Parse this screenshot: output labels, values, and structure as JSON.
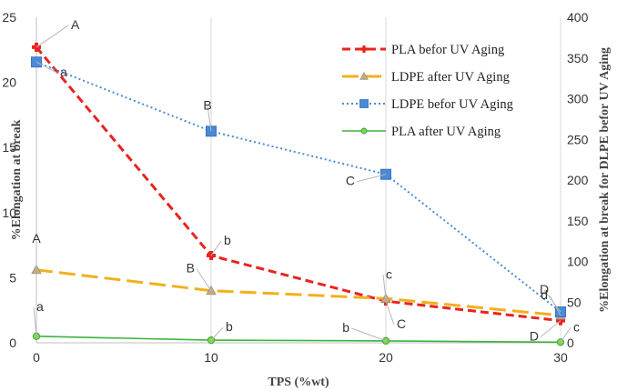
{
  "chart_data": {
    "type": "line",
    "x": [
      0,
      10,
      20,
      30
    ],
    "xlabel": "TPS (%wt)",
    "ylabel_left": "%Elongation at break",
    "ylabel_right": "%Elongation at break for DLPE befor UV Aging",
    "xlim": [
      0,
      30
    ],
    "ylim_left": [
      0,
      25
    ],
    "ylim_right": [
      0,
      400
    ],
    "x_ticks": [
      "0",
      "10",
      "20",
      "30"
    ],
    "y_left_ticks": [
      "0",
      "5",
      "10",
      "15",
      "20",
      "25"
    ],
    "y_right_ticks": [
      "0",
      "50",
      "100",
      "150",
      "200",
      "250",
      "300",
      "350",
      "400"
    ],
    "grid": "vertical",
    "legend_position": "top-right",
    "series": [
      {
        "name": "PLA befor UV Aging",
        "axis": "left",
        "color": "#e8231e",
        "dash": "dashed",
        "marker": "cross",
        "values": [
          22.7,
          6.7,
          3.2,
          1.7
        ]
      },
      {
        "name": "LDPE after UV Aging",
        "axis": "left",
        "color": "#f2b01e",
        "dash": "longdash",
        "marker": "triangle",
        "values": [
          5.6,
          4.0,
          3.4,
          2.1
        ]
      },
      {
        "name": "LDPE befor UV Aging",
        "axis": "right",
        "color": "#4a8ad6",
        "dash": "dotted",
        "marker": "square",
        "values": [
          345,
          260,
          207,
          38
        ]
      },
      {
        "name": "PLA after UV Aging",
        "axis": "left",
        "color": "#3cb43c",
        "dash": "solid",
        "marker": "circle",
        "values": [
          0.5,
          0.2,
          0.15,
          0.05
        ]
      }
    ],
    "annotations": [
      {
        "text": "A",
        "x": 0,
        "series": 0
      },
      {
        "text": "a",
        "x": 0,
        "series": 2
      },
      {
        "text": "B",
        "x": 10,
        "series": 2
      },
      {
        "text": "C",
        "x": 20,
        "series": 2
      },
      {
        "text": "D",
        "x": 30,
        "series": 2
      },
      {
        "text": "b",
        "x": 10,
        "series": 0
      },
      {
        "text": "A",
        "x": 0,
        "series": 1
      },
      {
        "text": "B",
        "x": 10,
        "series": 1
      },
      {
        "text": "c",
        "x": 20,
        "series": 1
      },
      {
        "text": "C",
        "x": 20,
        "series": 0
      },
      {
        "text": "d",
        "x": 30,
        "series": 1
      },
      {
        "text": "D",
        "x": 30,
        "series": 0
      },
      {
        "text": "a",
        "x": 0,
        "series": 3
      },
      {
        "text": "b",
        "x": 10,
        "series": 3
      },
      {
        "text": "b",
        "x": 20,
        "series": 3
      },
      {
        "text": "c",
        "x": 30,
        "series": 3
      }
    ]
  }
}
